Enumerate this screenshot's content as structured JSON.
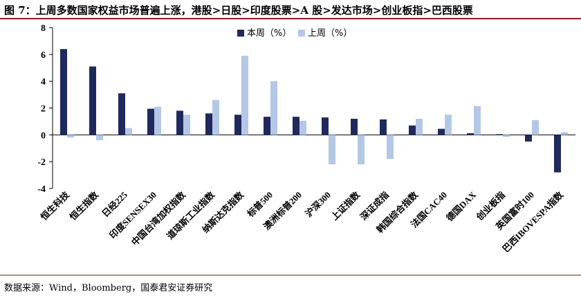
{
  "header": {
    "title": "图 7：上周多数国家权益市场普遍上涨，港股>日股>印度股票>A 股>发达市场>创业板指>巴西股票"
  },
  "footer": {
    "source": "数据来源：Wind，Bloomberg，国泰君安证券研究"
  },
  "chart_data": {
    "type": "bar",
    "title": "",
    "xlabel": "",
    "ylabel": "",
    "ylim": [
      -4,
      8
    ],
    "yticks": [
      -4,
      -2,
      0,
      2,
      4,
      6,
      8
    ],
    "grid": false,
    "legend_position": "top-center",
    "categories": [
      "恒生科技",
      "恒生指数",
      "日经225",
      "印度SENSEX30",
      "中国台湾加权指数",
      "道琼斯工业指数",
      "纳斯达克指数",
      "标普500",
      "澳洲标普200",
      "沪深300",
      "上证指数",
      "深证成指",
      "韩国综合指数",
      "法国CAC40",
      "德国DAX",
      "创业板指",
      "英国富时100",
      "巴西IBOVESPA指数"
    ],
    "series": [
      {
        "name": "本周（%）",
        "color": "#1f2a5c",
        "values": [
          6.4,
          5.1,
          3.1,
          1.95,
          1.8,
          1.6,
          1.5,
          1.35,
          1.35,
          1.3,
          1.2,
          1.15,
          0.7,
          0.45,
          0.12,
          0.05,
          -0.5,
          -2.8
        ]
      },
      {
        "name": "上周（%）",
        "color": "#b4c7e7",
        "values": [
          -0.2,
          -0.4,
          0.5,
          2.1,
          1.5,
          2.6,
          5.9,
          4.0,
          1.05,
          -2.2,
          -2.2,
          -1.8,
          1.2,
          1.5,
          2.15,
          -0.15,
          1.1,
          0.2
        ]
      }
    ]
  }
}
